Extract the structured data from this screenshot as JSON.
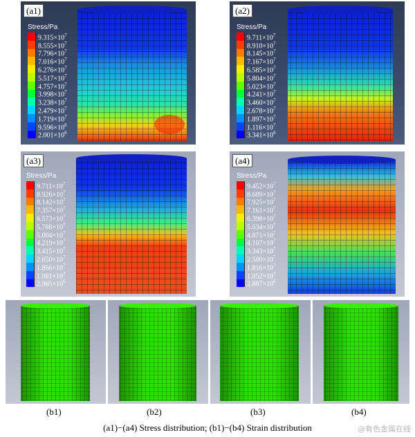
{
  "panels_a": [
    {
      "label": "(a1)",
      "legend_title": "Stress/Pa",
      "values": [
        "9.315×10",
        "8.555×10",
        "7.796×10",
        "7.016×10",
        "6.276×10",
        "5.517×10",
        "4.757×10",
        "3.998×10",
        "3.238×10",
        "2.479×10",
        "1.719×10",
        "9.596×10",
        "2.001×10"
      ],
      "exps": [
        "7",
        "7",
        "7",
        "7",
        "7",
        "7",
        "7",
        "7",
        "7",
        "7",
        "7",
        "6",
        "6"
      ]
    },
    {
      "label": "(a2)",
      "legend_title": "Stress/Pa",
      "values": [
        "9.711×10",
        "8.910×10",
        "8.145×10",
        "7.167×10",
        "6.585×10",
        "5.804×10",
        "5.023×10",
        "4.241×10",
        "3.460×10",
        "2.678×10",
        "1.897×10",
        "1.116×10",
        "3.341×10"
      ],
      "exps": [
        "7",
        "7",
        "7",
        "7",
        "7",
        "7",
        "7",
        "7",
        "7",
        "7",
        "7",
        "7",
        "6"
      ]
    },
    {
      "label": "(a3)",
      "legend_title": "Stress/Pa",
      "values": [
        "9.711×10",
        "8.926×10",
        "8.142×10",
        "7.357×10",
        "6.573×10",
        "5.788×10",
        "5.004×10",
        "4.219×10",
        "3.415×10",
        "2.650×10",
        "1.866×10",
        "1.081×10",
        "2.965×10"
      ],
      "exps": [
        "7",
        "7",
        "7",
        "7",
        "7",
        "7",
        "7",
        "7",
        "7",
        "7",
        "7",
        "7",
        "6"
      ]
    },
    {
      "label": "(a4)",
      "legend_title": "Stress/Pa",
      "values": [
        "9.452×10",
        "8.689×10",
        "7.925×10",
        "7.161×10",
        "6.398×10",
        "5.634×10",
        "4.871×10",
        "4.107×10",
        "3.343×10",
        "2.580×10",
        "1.816×10",
        "1.052×10",
        "2.887×10"
      ],
      "exps": [
        "7",
        "7",
        "7",
        "7",
        "7",
        "7",
        "7",
        "7",
        "7",
        "7",
        "7",
        "7",
        "6"
      ]
    }
  ],
  "panels_b": [
    {
      "label": "(b1)"
    },
    {
      "label": "(b2)"
    },
    {
      "label": "(b3)"
    },
    {
      "label": "(b4)"
    }
  ],
  "legend_colors": [
    "#ff0000",
    "#ff3d00",
    "#ff7a00",
    "#ffb800",
    "#f5f000",
    "#b8ff00",
    "#5cff00",
    "#00ff38",
    "#00ffb0",
    "#00d6ff",
    "#0090ff",
    "#0044ff",
    "#0000ff"
  ],
  "mesh_green": "#2ee000",
  "caption": "(a1)−(a4) Stress distribution;  (b1)−(b4) Strain distribution",
  "watermark": "@有色金属在线"
}
